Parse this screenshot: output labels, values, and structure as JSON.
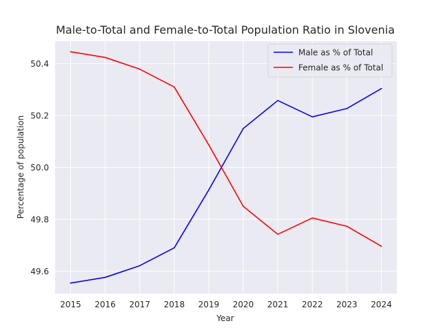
{
  "chart_data": {
    "type": "line",
    "title": "Male-to-Total and Female-to-Total Population Ratio in Slovenia",
    "xlabel": "Year",
    "ylabel": "Percentage of population",
    "x": [
      2015,
      2016,
      2017,
      2018,
      2019,
      2020,
      2021,
      2022,
      2023,
      2024
    ],
    "x_ticks": [
      "2015",
      "2016",
      "2017",
      "2018",
      "2019",
      "2020",
      "2021",
      "2022",
      "2023",
      "2024"
    ],
    "y_ticks": [
      "49.6",
      "49.8",
      "50.0",
      "50.2",
      "50.4"
    ],
    "xlim": [
      2014.55,
      2024.45
    ],
    "ylim": [
      49.5135,
      50.4865
    ],
    "grid": true,
    "legend_position": "top-right",
    "series": [
      {
        "name": "Male as % of Total",
        "color": "#0000ff",
        "values": [
          49.554,
          49.576,
          49.621,
          49.69,
          49.913,
          50.15,
          50.258,
          50.195,
          50.227,
          50.304
        ]
      },
      {
        "name": "Female as % of Total",
        "color": "#ff0000",
        "values": [
          50.446,
          50.424,
          50.379,
          50.31,
          50.087,
          49.85,
          49.742,
          49.805,
          49.773,
          49.696
        ]
      }
    ]
  }
}
